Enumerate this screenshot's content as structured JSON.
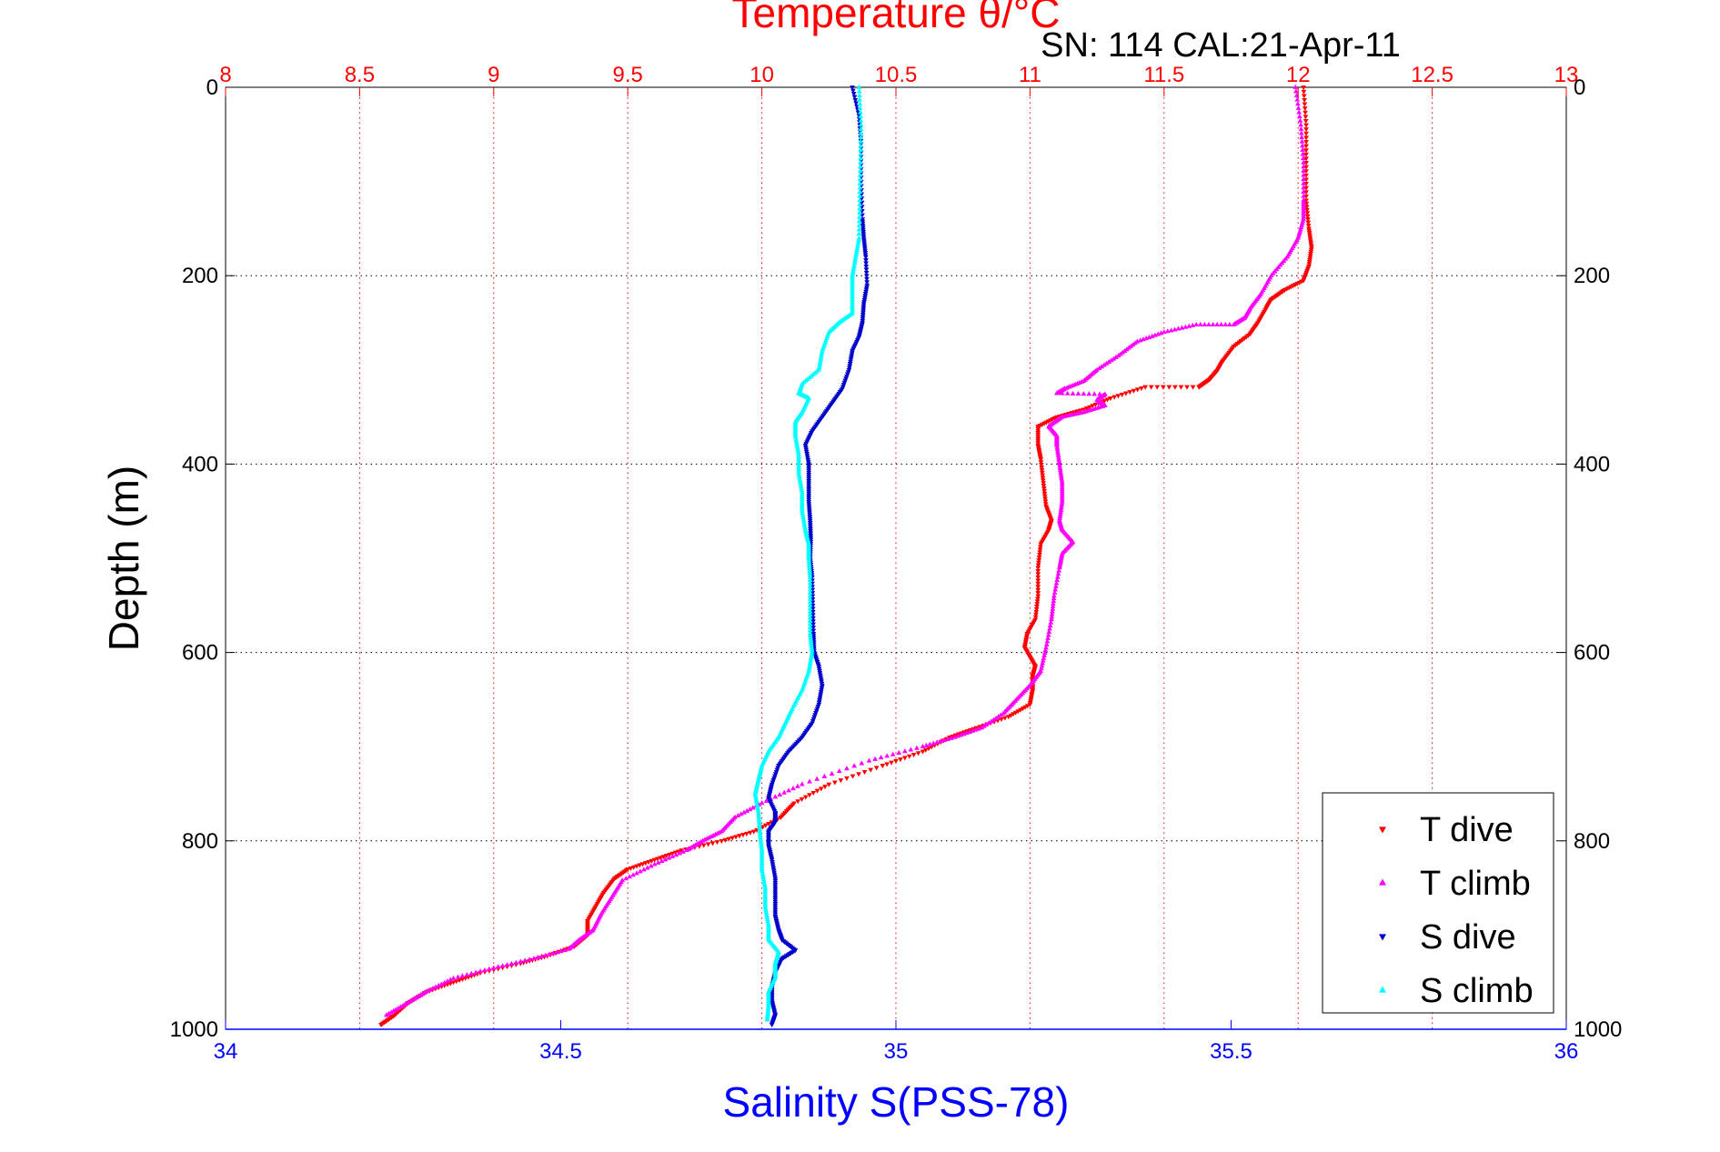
{
  "chart_data": {
    "type": "scatter",
    "title": "Temperature θ/°C",
    "subtitle": "SN: 114  CAL:21-Apr-11",
    "ylabel": "Depth (m)",
    "xlabel_bottom": "Salinity S(PSS-78)",
    "xlabel_top": "Temperature θ/°C",
    "colors": {
      "temperature_axis": "#ff0000",
      "salinity_axis": "#0000ff",
      "t_dive": "#ff0000",
      "t_climb": "#ff00ff",
      "s_dive": "#0000cd",
      "s_climb": "#00ffff",
      "depth_grid": "#000000",
      "temperature_grid": "#ff0000"
    },
    "ylim": [
      1000,
      0
    ],
    "y_reversed": true,
    "y_ticks": [
      0,
      200,
      400,
      600,
      800,
      1000
    ],
    "y_tick_labels": [
      "0",
      "200",
      "400",
      "600",
      "800",
      "1000"
    ],
    "temperature_axis": {
      "position": "top",
      "lim": [
        8,
        13
      ],
      "ticks": [
        8,
        8.5,
        9,
        9.5,
        10,
        10.5,
        11,
        11.5,
        12,
        12.5,
        13
      ],
      "tick_labels": [
        "8",
        "8.5",
        "9",
        "9.5",
        "10",
        "10.5",
        "11",
        "11.5",
        "12",
        "12.5",
        "13"
      ]
    },
    "salinity_axis": {
      "position": "bottom",
      "lim": [
        34,
        36
      ],
      "ticks": [
        34,
        34.5,
        35,
        35.5,
        36
      ],
      "tick_labels": [
        "34",
        "34.5",
        "35",
        "35.5",
        "36"
      ]
    },
    "grid": true,
    "legend_position": "bottom-right",
    "series": [
      {
        "name": "T dive",
        "axis": "temperature",
        "marker": "down-triangle",
        "points": [
          [
            12.02,
            0
          ],
          [
            12.03,
            40
          ],
          [
            12.03,
            80
          ],
          [
            12.03,
            120
          ],
          [
            12.04,
            150
          ],
          [
            12.05,
            170
          ],
          [
            12.04,
            190
          ],
          [
            12.02,
            205
          ],
          [
            11.95,
            215
          ],
          [
            11.9,
            225
          ],
          [
            11.88,
            235
          ],
          [
            11.85,
            250
          ],
          [
            11.82,
            262
          ],
          [
            11.76,
            275
          ],
          [
            11.72,
            290
          ],
          [
            11.7,
            300
          ],
          [
            11.67,
            310
          ],
          [
            11.63,
            318
          ],
          [
            11.43,
            318
          ],
          [
            11.3,
            330
          ],
          [
            11.2,
            342
          ],
          [
            11.1,
            350
          ],
          [
            11.03,
            360
          ],
          [
            11.03,
            380
          ],
          [
            11.04,
            395
          ],
          [
            11.05,
            420
          ],
          [
            11.06,
            445
          ],
          [
            11.08,
            460
          ],
          [
            11.07,
            470
          ],
          [
            11.04,
            485
          ],
          [
            11.03,
            510
          ],
          [
            11.03,
            540
          ],
          [
            11.02,
            565
          ],
          [
            10.99,
            580
          ],
          [
            10.98,
            595
          ],
          [
            11.0,
            605
          ],
          [
            11.02,
            615
          ],
          [
            11.01,
            625
          ],
          [
            11.01,
            640
          ],
          [
            11.0,
            655
          ],
          [
            10.92,
            668
          ],
          [
            10.8,
            680
          ],
          [
            10.7,
            690
          ],
          [
            10.6,
            705
          ],
          [
            10.45,
            720
          ],
          [
            10.25,
            740
          ],
          [
            10.12,
            760
          ],
          [
            10.07,
            775
          ],
          [
            9.97,
            790
          ],
          [
            9.85,
            800
          ],
          [
            9.7,
            810
          ],
          [
            9.6,
            820
          ],
          [
            9.5,
            830
          ],
          [
            9.45,
            840
          ],
          [
            9.41,
            855
          ],
          [
            9.38,
            870
          ],
          [
            9.35,
            885
          ],
          [
            9.35,
            900
          ],
          [
            9.3,
            912
          ],
          [
            9.2,
            922
          ],
          [
            9.1,
            930
          ],
          [
            8.95,
            940
          ],
          [
            8.85,
            950
          ],
          [
            8.75,
            960
          ],
          [
            8.68,
            972
          ],
          [
            8.63,
            985
          ],
          [
            8.58,
            995
          ]
        ]
      },
      {
        "name": "T climb",
        "axis": "temperature",
        "marker": "up-triangle",
        "points": [
          [
            11.99,
            0
          ],
          [
            12.01,
            40
          ],
          [
            12.02,
            80
          ],
          [
            12.02,
            120
          ],
          [
            12.02,
            140
          ],
          [
            12.0,
            160
          ],
          [
            11.96,
            180
          ],
          [
            11.9,
            200
          ],
          [
            11.86,
            220
          ],
          [
            11.82,
            235
          ],
          [
            11.8,
            245
          ],
          [
            11.76,
            252
          ],
          [
            11.62,
            252
          ],
          [
            11.5,
            260
          ],
          [
            11.4,
            270
          ],
          [
            11.33,
            285
          ],
          [
            11.25,
            300
          ],
          [
            11.2,
            312
          ],
          [
            11.13,
            320
          ],
          [
            11.1,
            325
          ],
          [
            11.28,
            326
          ],
          [
            11.25,
            332
          ],
          [
            11.28,
            338
          ],
          [
            11.2,
            345
          ],
          [
            11.12,
            350
          ],
          [
            11.07,
            360
          ],
          [
            11.1,
            370
          ],
          [
            11.1,
            380
          ],
          [
            11.11,
            400
          ],
          [
            11.12,
            420
          ],
          [
            11.12,
            440
          ],
          [
            11.11,
            460
          ],
          [
            11.12,
            470
          ],
          [
            11.16,
            483
          ],
          [
            11.12,
            495
          ],
          [
            11.11,
            510
          ],
          [
            11.09,
            540
          ],
          [
            11.08,
            565
          ],
          [
            11.06,
            595
          ],
          [
            11.04,
            620
          ],
          [
            11.0,
            635
          ],
          [
            10.95,
            650
          ],
          [
            10.9,
            665
          ],
          [
            10.82,
            680
          ],
          [
            10.72,
            690
          ],
          [
            10.6,
            700
          ],
          [
            10.4,
            715
          ],
          [
            10.15,
            740
          ],
          [
            10.0,
            760
          ],
          [
            9.9,
            775
          ],
          [
            9.85,
            790
          ],
          [
            9.78,
            800
          ],
          [
            9.72,
            810
          ],
          [
            9.6,
            825
          ],
          [
            9.48,
            842
          ],
          [
            9.44,
            860
          ],
          [
            9.4,
            878
          ],
          [
            9.37,
            895
          ],
          [
            9.32,
            905
          ],
          [
            9.28,
            915
          ],
          [
            9.15,
            925
          ],
          [
            9.0,
            935
          ],
          [
            8.85,
            946
          ],
          [
            8.75,
            960
          ],
          [
            8.68,
            972
          ],
          [
            8.6,
            985
          ]
        ]
      },
      {
        "name": "S dive",
        "axis": "salinity",
        "marker": "down-triangle",
        "points": [
          [
            34.935,
            0
          ],
          [
            34.945,
            30
          ],
          [
            34.948,
            60
          ],
          [
            34.948,
            100
          ],
          [
            34.95,
            140
          ],
          [
            34.952,
            160
          ],
          [
            34.955,
            180
          ],
          [
            34.957,
            210
          ],
          [
            34.952,
            230
          ],
          [
            34.95,
            250
          ],
          [
            34.945,
            265
          ],
          [
            34.935,
            280
          ],
          [
            34.93,
            300
          ],
          [
            34.92,
            320
          ],
          [
            34.905,
            335
          ],
          [
            34.89,
            350
          ],
          [
            34.875,
            365
          ],
          [
            34.865,
            380
          ],
          [
            34.87,
            400
          ],
          [
            34.87,
            420
          ],
          [
            34.87,
            440
          ],
          [
            34.872,
            460
          ],
          [
            34.873,
            480
          ],
          [
            34.872,
            500
          ],
          [
            34.875,
            520
          ],
          [
            34.876,
            550
          ],
          [
            34.877,
            580
          ],
          [
            34.878,
            600
          ],
          [
            34.885,
            615
          ],
          [
            34.89,
            635
          ],
          [
            34.885,
            655
          ],
          [
            34.875,
            675
          ],
          [
            34.86,
            690
          ],
          [
            34.84,
            705
          ],
          [
            34.825,
            720
          ],
          [
            34.815,
            740
          ],
          [
            34.81,
            755
          ],
          [
            34.82,
            770
          ],
          [
            34.82,
            780
          ],
          [
            34.81,
            790
          ],
          [
            34.81,
            805
          ],
          [
            34.815,
            820
          ],
          [
            34.82,
            840
          ],
          [
            34.82,
            860
          ],
          [
            34.82,
            880
          ],
          [
            34.825,
            895
          ],
          [
            34.83,
            905
          ],
          [
            34.85,
            916
          ],
          [
            34.83,
            925
          ],
          [
            34.82,
            940
          ],
          [
            34.815,
            955
          ],
          [
            34.815,
            970
          ],
          [
            34.82,
            985
          ],
          [
            34.815,
            995
          ]
        ]
      },
      {
        "name": "S climb",
        "axis": "salinity",
        "marker": "up-triangle",
        "points": [
          [
            34.945,
            0
          ],
          [
            34.948,
            40
          ],
          [
            34.947,
            80
          ],
          [
            34.946,
            120
          ],
          [
            34.945,
            160
          ],
          [
            34.94,
            180
          ],
          [
            34.935,
            200
          ],
          [
            34.935,
            220
          ],
          [
            34.935,
            240
          ],
          [
            34.915,
            250
          ],
          [
            34.9,
            260
          ],
          [
            34.89,
            280
          ],
          [
            34.885,
            300
          ],
          [
            34.86,
            315
          ],
          [
            34.855,
            325
          ],
          [
            34.87,
            330
          ],
          [
            34.86,
            345
          ],
          [
            34.85,
            355
          ],
          [
            34.85,
            370
          ],
          [
            34.855,
            390
          ],
          [
            34.855,
            410
          ],
          [
            34.86,
            430
          ],
          [
            34.86,
            450
          ],
          [
            34.865,
            470
          ],
          [
            34.87,
            485
          ],
          [
            34.87,
            500
          ],
          [
            34.872,
            520
          ],
          [
            34.872,
            550
          ],
          [
            34.872,
            580
          ],
          [
            34.875,
            600
          ],
          [
            34.87,
            620
          ],
          [
            34.86,
            640
          ],
          [
            34.845,
            660
          ],
          [
            34.835,
            675
          ],
          [
            34.825,
            690
          ],
          [
            34.81,
            705
          ],
          [
            34.8,
            720
          ],
          [
            34.795,
            735
          ],
          [
            34.79,
            750
          ],
          [
            34.795,
            770
          ],
          [
            34.797,
            790
          ],
          [
            34.8,
            810
          ],
          [
            34.8,
            830
          ],
          [
            34.805,
            850
          ],
          [
            34.805,
            870
          ],
          [
            34.81,
            890
          ],
          [
            34.81,
            905
          ],
          [
            34.825,
            918
          ],
          [
            34.82,
            930
          ],
          [
            34.82,
            945
          ],
          [
            34.81,
            960
          ],
          [
            34.81,
            975
          ],
          [
            34.808,
            990
          ]
        ]
      }
    ]
  }
}
